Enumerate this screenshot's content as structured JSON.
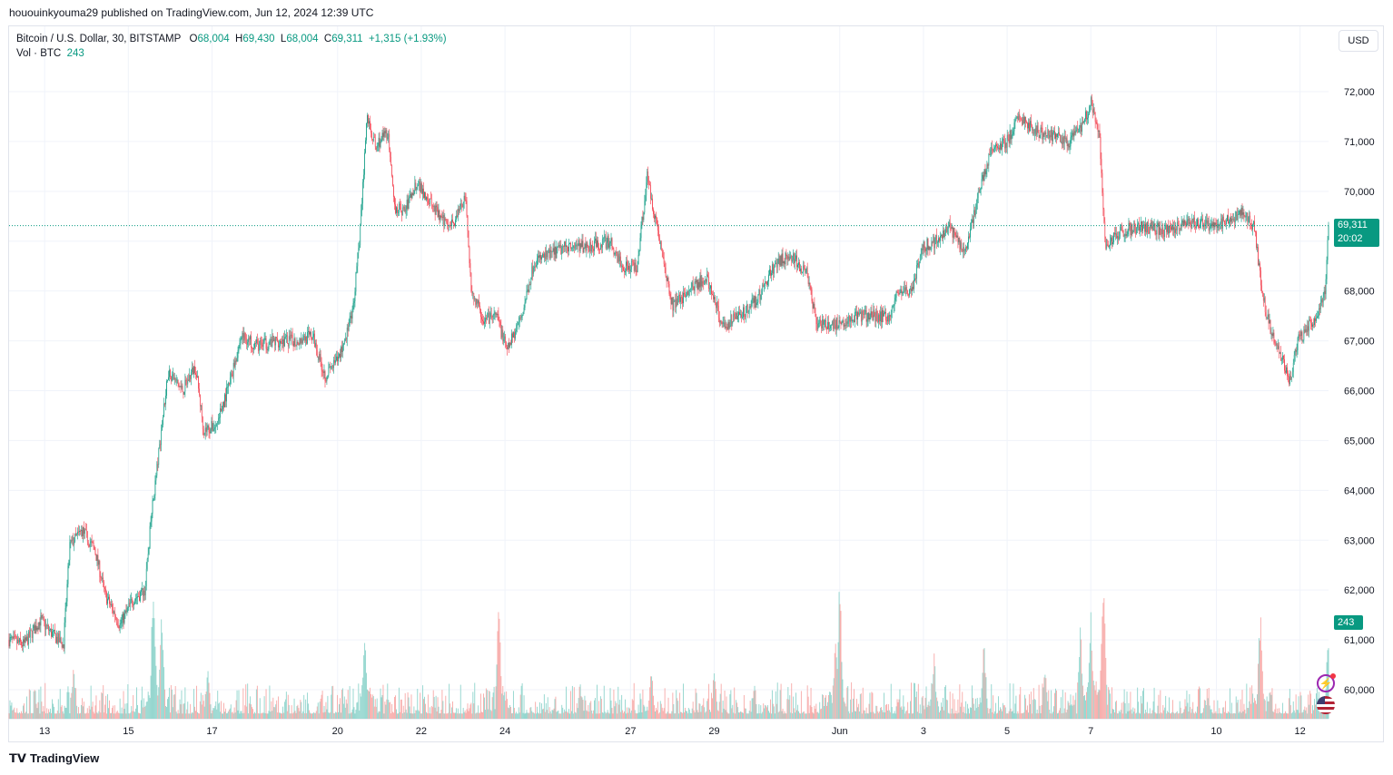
{
  "publisher": "hououinkyouma29 published on TradingView.com, Jun 12, 2024 12:39 UTC",
  "legend": {
    "symbol": "Bitcoin / U.S. Dollar, 30, BITSTAMP",
    "o_label": "O",
    "o_value": "68,004",
    "h_label": "H",
    "h_value": "69,430",
    "l_label": "L",
    "l_value": "68,004",
    "c_label": "C",
    "c_value": "69,311",
    "change": "+1,315 (+1.93%)",
    "vol_label": "Vol · BTC",
    "vol_value": "243"
  },
  "currency": "USD",
  "last_price_badge": "69,311",
  "countdown_badge": "20:02",
  "volume_badge": "243",
  "footer_brand": "TradingView",
  "colors": {
    "up": "#089981",
    "down": "#f23645",
    "up_vol": "#8fd4cc",
    "down_vol": "#f7a9a7",
    "grid": "#f0f3fa"
  },
  "icons": [
    "alert-bolt-icon",
    "us-flag-icon",
    "tradingview-logo-icon"
  ],
  "chart_data": {
    "type": "candlestick",
    "interval": "30",
    "ylim": [
      59500,
      72500
    ],
    "y_ticks": [
      72000,
      71000,
      70000,
      69000,
      68000,
      67000,
      66000,
      65000,
      64000,
      63000,
      62000,
      61000,
      60000
    ],
    "y_tick_labels": [
      "72,000",
      "71,000",
      "70,000",
      "69,000",
      "68,000",
      "67,000",
      "66,000",
      "65,000",
      "64,000",
      "63,000",
      "62,000",
      "61,000",
      "60,000"
    ],
    "x_tick_labels": [
      "13",
      "15",
      "17",
      "20",
      "22",
      "24",
      "27",
      "29",
      "Jun",
      "3",
      "5",
      "7",
      "10",
      "12"
    ],
    "x_tick_days": [
      13,
      15,
      17,
      20,
      22,
      24,
      27,
      29,
      32,
      34,
      36,
      38,
      41,
      43
    ],
    "day_range": [
      12.15,
      43.68
    ],
    "last_close": 69311,
    "path_points": [
      [
        12.15,
        61000
      ],
      [
        12.5,
        60900
      ],
      [
        12.9,
        61400
      ],
      [
        13.2,
        61100
      ],
      [
        13.45,
        60900
      ],
      [
        13.6,
        62900
      ],
      [
        13.9,
        63200
      ],
      [
        14.2,
        62800
      ],
      [
        14.45,
        61900
      ],
      [
        14.8,
        61300
      ],
      [
        15.1,
        61800
      ],
      [
        15.4,
        62000
      ],
      [
        15.55,
        63500
      ],
      [
        15.75,
        64900
      ],
      [
        15.95,
        66400
      ],
      [
        16.3,
        66000
      ],
      [
        16.6,
        66500
      ],
      [
        16.8,
        65200
      ],
      [
        17.1,
        65300
      ],
      [
        17.4,
        66100
      ],
      [
        17.7,
        67100
      ],
      [
        18.1,
        66900
      ],
      [
        18.6,
        67000
      ],
      [
        19.0,
        67000
      ],
      [
        19.4,
        67100
      ],
      [
        19.7,
        66300
      ],
      [
        20.0,
        66600
      ],
      [
        20.35,
        67500
      ],
      [
        20.55,
        69300
      ],
      [
        20.7,
        71500
      ],
      [
        20.9,
        70900
      ],
      [
        21.2,
        71200
      ],
      [
        21.35,
        69700
      ],
      [
        21.6,
        69600
      ],
      [
        21.9,
        70200
      ],
      [
        22.2,
        69800
      ],
      [
        22.5,
        69400
      ],
      [
        22.8,
        69400
      ],
      [
        23.05,
        69900
      ],
      [
        23.2,
        68000
      ],
      [
        23.5,
        67400
      ],
      [
        23.8,
        67500
      ],
      [
        24.05,
        66800
      ],
      [
        24.4,
        67500
      ],
      [
        24.7,
        68600
      ],
      [
        25.0,
        68700
      ],
      [
        25.5,
        68900
      ],
      [
        26.0,
        68900
      ],
      [
        26.5,
        69000
      ],
      [
        26.8,
        68500
      ],
      [
        27.15,
        68500
      ],
      [
        27.4,
        70300
      ],
      [
        27.7,
        69000
      ],
      [
        28.0,
        67700
      ],
      [
        28.4,
        68000
      ],
      [
        28.8,
        68300
      ],
      [
        29.2,
        67300
      ],
      [
        29.6,
        67500
      ],
      [
        30.0,
        67800
      ],
      [
        30.5,
        68600
      ],
      [
        30.8,
        68700
      ],
      [
        31.2,
        68400
      ],
      [
        31.45,
        67300
      ],
      [
        31.8,
        67300
      ],
      [
        32.3,
        67500
      ],
      [
        32.8,
        67500
      ],
      [
        33.2,
        67500
      ],
      [
        33.4,
        68000
      ],
      [
        33.7,
        68000
      ],
      [
        34.0,
        68900
      ],
      [
        34.3,
        69000
      ],
      [
        34.6,
        69300
      ],
      [
        35.0,
        68800
      ],
      [
        35.3,
        69900
      ],
      [
        35.6,
        70800
      ],
      [
        36.0,
        71000
      ],
      [
        36.3,
        71500
      ],
      [
        36.7,
        71200
      ],
      [
        37.1,
        71100
      ],
      [
        37.5,
        71000
      ],
      [
        37.8,
        71300
      ],
      [
        38.0,
        71800
      ],
      [
        38.2,
        71200
      ],
      [
        38.35,
        68900
      ],
      [
        38.7,
        69200
      ],
      [
        39.2,
        69300
      ],
      [
        39.8,
        69200
      ],
      [
        40.3,
        69400
      ],
      [
        40.8,
        69300
      ],
      [
        41.3,
        69400
      ],
      [
        41.6,
        69600
      ],
      [
        41.9,
        69300
      ],
      [
        42.1,
        67900
      ],
      [
        42.3,
        67200
      ],
      [
        42.55,
        66700
      ],
      [
        42.75,
        66200
      ],
      [
        42.95,
        67000
      ],
      [
        43.2,
        67300
      ],
      [
        43.45,
        67600
      ],
      [
        43.6,
        68004
      ],
      [
        43.68,
        69311
      ]
    ],
    "volume_spikes": [
      [
        15.6,
        0.95
      ],
      [
        15.8,
        0.7
      ],
      [
        20.65,
        0.6
      ],
      [
        23.85,
        0.72
      ],
      [
        32.0,
        0.88
      ],
      [
        31.9,
        0.52
      ],
      [
        34.25,
        0.43
      ],
      [
        35.45,
        0.5
      ],
      [
        37.75,
        0.6
      ],
      [
        38.3,
        1.0
      ],
      [
        38.0,
        0.63
      ],
      [
        42.05,
        0.72
      ],
      [
        43.68,
        0.58
      ],
      [
        13.7,
        0.35
      ],
      [
        29.0,
        0.3
      ],
      [
        36.9,
        0.35
      ],
      [
        16.9,
        0.3
      ],
      [
        25.8,
        0.22
      ],
      [
        27.5,
        0.3
      ],
      [
        40.8,
        0.15
      ]
    ]
  }
}
